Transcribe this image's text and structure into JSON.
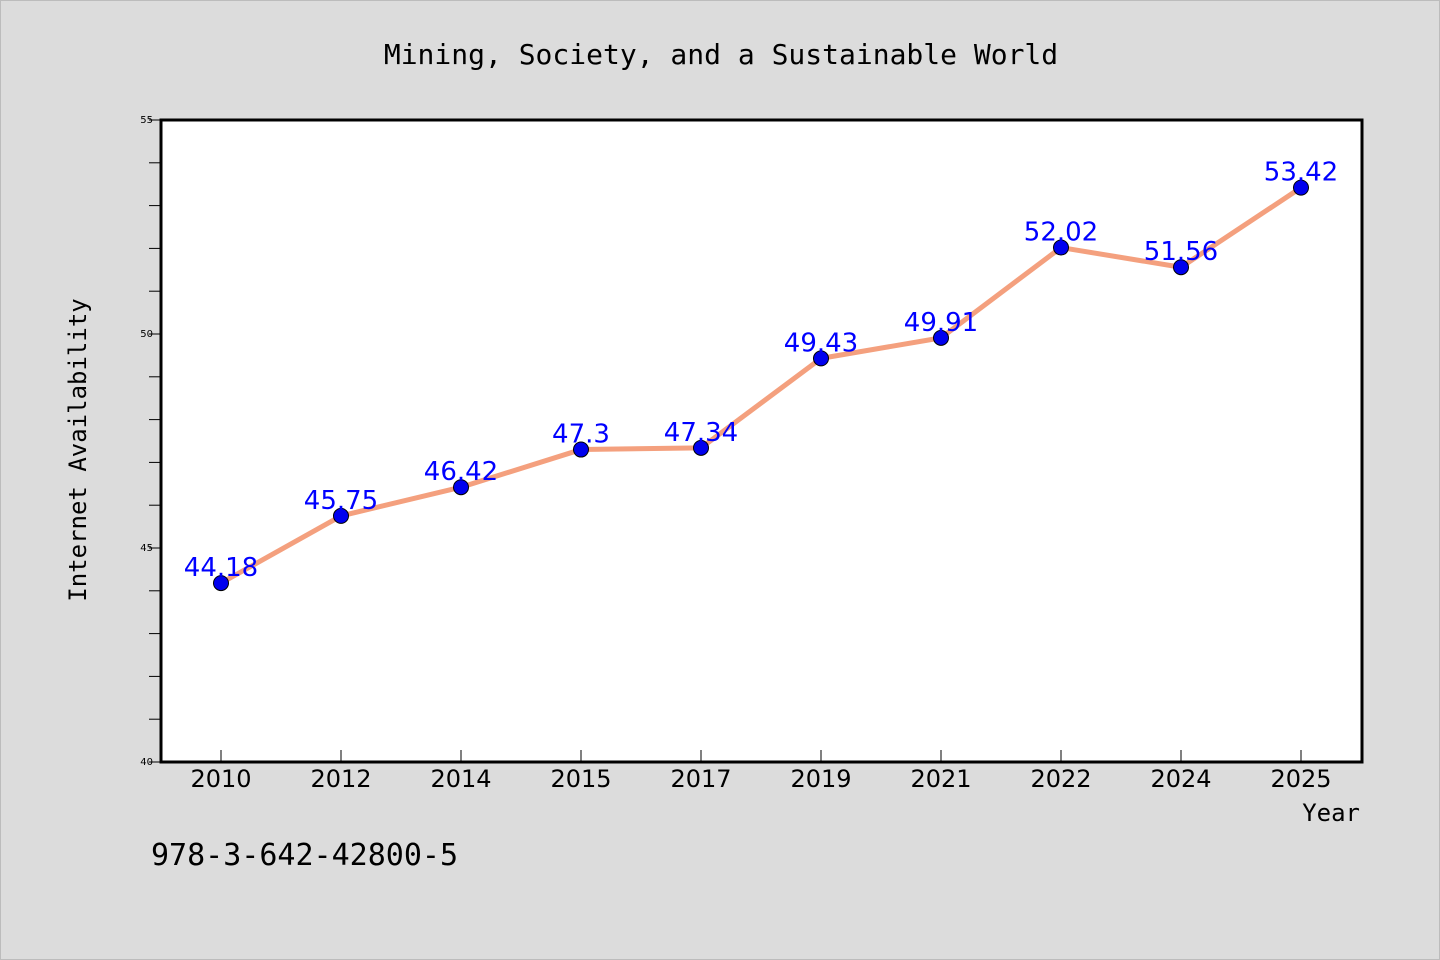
{
  "chart_data": {
    "type": "line",
    "title": "Mining, Society, and a Sustainable World",
    "xlabel": "Year",
    "ylabel": "Internet Availability",
    "categories": [
      "2010",
      "2012",
      "2014",
      "2015",
      "2017",
      "2019",
      "2021",
      "2022",
      "2024",
      "2025"
    ],
    "series": [
      {
        "values": [
          44.18,
          45.75,
          46.42,
          47.3,
          47.34,
          49.43,
          49.91,
          52.02,
          51.56,
          53.42
        ],
        "labels": [
          "44.18",
          "45.75",
          "46.42",
          "47.3",
          "47.34",
          "49.43",
          "49.91",
          "52.02",
          "51.56",
          "53.42"
        ],
        "line_color": "#f4a07e",
        "marker_color": "#0000ee",
        "label_color": "#0000ff"
      }
    ],
    "ylim": [
      40,
      55
    ],
    "y_major_ticks": [
      "40",
      "45",
      "50",
      "55"
    ],
    "grid": false,
    "legend": "none"
  },
  "annotation": "978-3-642-42800-5"
}
